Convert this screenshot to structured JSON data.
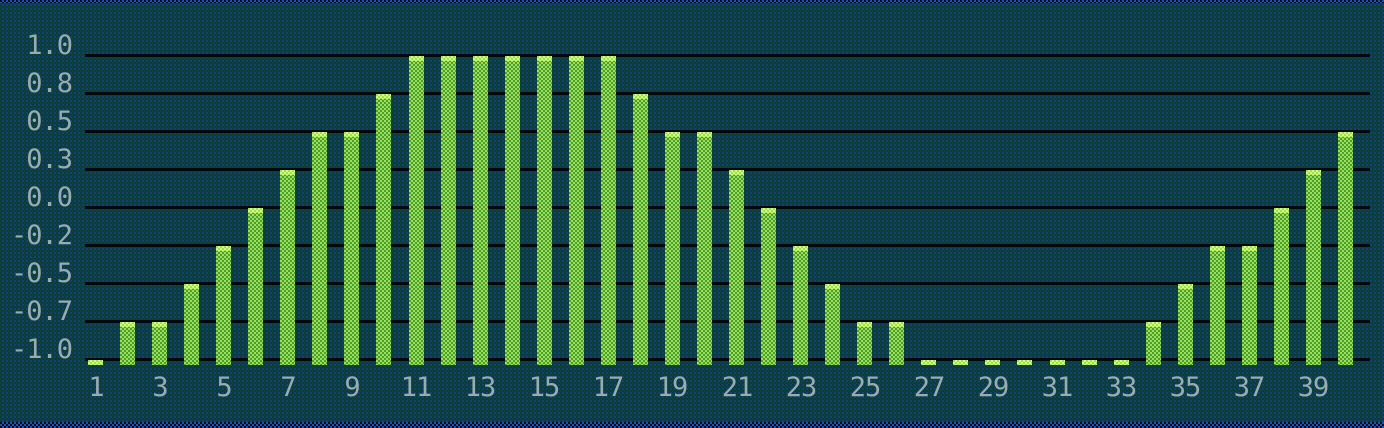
{
  "chart_data": {
    "type": "bar",
    "title": "",
    "xlabel": "",
    "ylabel": "",
    "x": [
      1,
      2,
      3,
      4,
      5,
      6,
      7,
      8,
      9,
      10,
      11,
      12,
      13,
      14,
      15,
      16,
      17,
      18,
      19,
      20,
      21,
      22,
      23,
      24,
      25,
      26,
      27,
      28,
      29,
      30,
      31,
      32,
      33,
      34,
      35,
      36,
      37,
      38,
      39,
      40
    ],
    "values": [
      -1.0,
      -0.75,
      -0.75,
      -0.5,
      -0.25,
      0.0,
      0.25,
      0.5,
      0.5,
      0.75,
      1.0,
      1.0,
      1.0,
      1.0,
      1.0,
      1.0,
      1.0,
      0.75,
      0.5,
      0.5,
      0.25,
      0.0,
      -0.25,
      -0.5,
      -0.75,
      -0.75,
      -1.0,
      -1.0,
      -1.0,
      -1.0,
      -1.0,
      -1.0,
      -1.0,
      -0.75,
      -0.5,
      -0.25,
      -0.25,
      0.0,
      0.25,
      0.5
    ],
    "x_ticks": [
      "1",
      "3",
      "5",
      "7",
      "9",
      "11",
      "13",
      "15",
      "17",
      "19",
      "21",
      "23",
      "25",
      "27",
      "29",
      "31",
      "33",
      "35",
      "37",
      "39"
    ],
    "y_ticks": [
      {
        "label": "1.0",
        "value": 1.0
      },
      {
        "label": "0.8",
        "value": 0.75
      },
      {
        "label": "0.5",
        "value": 0.5
      },
      {
        "label": "0.3",
        "value": 0.25
      },
      {
        "label": "0.0",
        "value": 0.0
      },
      {
        "label": "-0.2",
        "value": -0.25
      },
      {
        "label": "-0.5",
        "value": -0.5
      },
      {
        "label": "-0.7",
        "value": -0.75
      },
      {
        "label": "-1.0",
        "value": -1.0
      }
    ],
    "ylim": [
      -1.0,
      1.0
    ],
    "bar_baseline": -1.0,
    "grid": "horizontal",
    "legend": "none"
  },
  "colors": {
    "background": "#0C3A44",
    "bg-blue-dot": "#114270",
    "bg-green-dot": "#0C442F",
    "gridline": "#01090E",
    "tick-label": "#A4B6B9",
    "bar-body": "#9CE24C",
    "bar-body-dark": "#4C9C3C",
    "bar-cap": "#D2FA85",
    "bar-cap-dark": "#9CE24C",
    "border-blue": "#1A52B8"
  }
}
